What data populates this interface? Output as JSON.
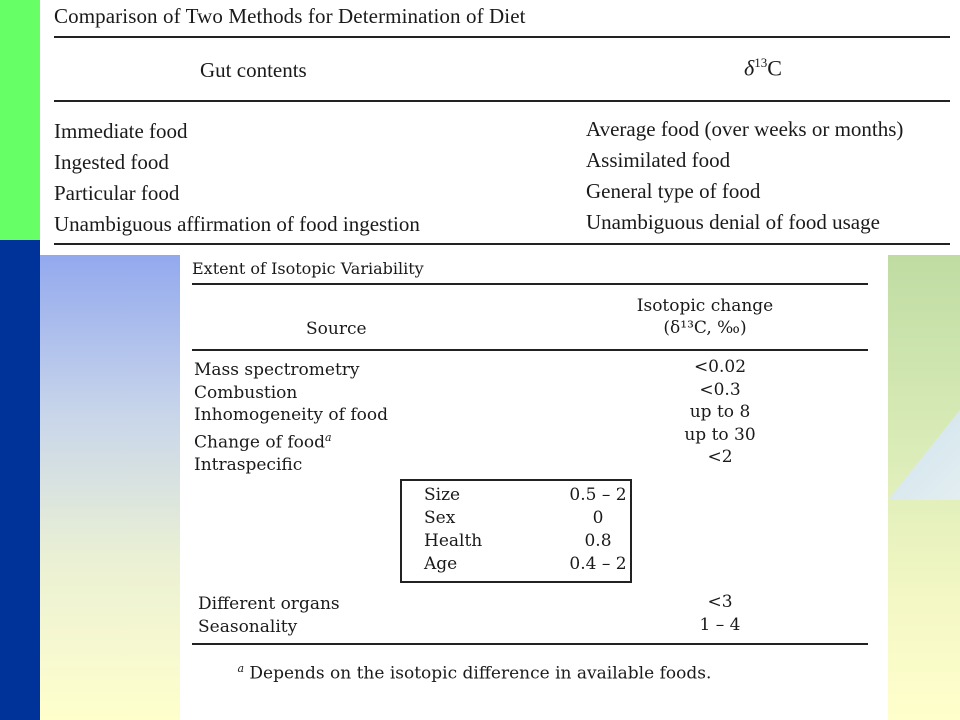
{
  "top_table": {
    "title": "Comparison of Two Methods for Determination of Diet",
    "header_left": "Gut contents",
    "header_right_delta": "δ",
    "header_right_sup": "13",
    "header_right_el": "C",
    "left_items": [
      "Immediate food",
      "Ingested food",
      "Particular food",
      "Unambiguous affirmation of food ingestion"
    ],
    "right_items": [
      "Average food (over weeks or months)",
      "Assimilated food",
      "General type of food",
      "Unambiguous denial of food usage"
    ]
  },
  "bottom_table": {
    "title": "Extent of Isotopic Variability",
    "header_left": "Source",
    "header_right_line1": "Isotopic change",
    "header_right_line2": "(δ¹³C, ‰)",
    "rows": [
      {
        "source": "Mass spectrometry",
        "value": "<0.02"
      },
      {
        "source": "Combustion",
        "value": "<0.3"
      },
      {
        "source": "Inhomogeneity of food",
        "value": "up to 8"
      },
      {
        "source": "Change of food",
        "sup": "a",
        "value": "up to 30"
      },
      {
        "source": "Intraspecific",
        "value": "<2"
      }
    ],
    "intraspecific_box": [
      {
        "label": "Size",
        "value": "0.5 – 2"
      },
      {
        "label": "Sex",
        "value": "0"
      },
      {
        "label": "Health",
        "value": "0.8"
      },
      {
        "label": "Age",
        "value": "0.4 – 2"
      }
    ],
    "rows_after": [
      {
        "source": "Different organs",
        "value": "<3"
      },
      {
        "source": "Seasonality",
        "value": "1 – 4"
      }
    ],
    "footnote_marker": "a",
    "footnote_text": "Depends on the isotopic difference in available foods."
  }
}
